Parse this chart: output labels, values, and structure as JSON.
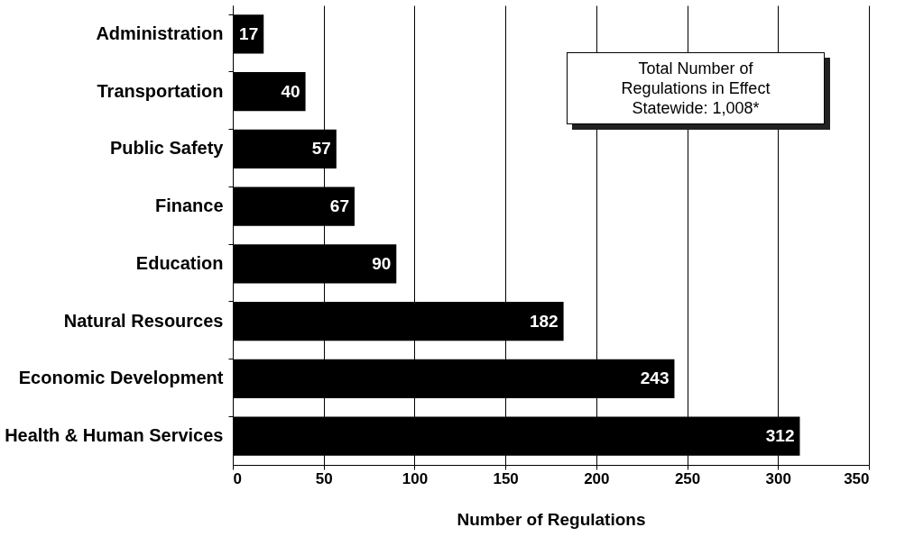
{
  "chart_data": {
    "type": "bar",
    "orientation": "horizontal",
    "xlabel": "Number of Regulations",
    "categories": [
      "Administration",
      "Transportation",
      "Public Safety",
      "Finance",
      "Education",
      "Natural Resources",
      "Economic Development",
      "Health & Human Services"
    ],
    "values": [
      17,
      40,
      57,
      67,
      90,
      182,
      243,
      312
    ],
    "color": "#000000",
    "xlim": [
      0,
      350
    ],
    "xticks": [
      0,
      50,
      100,
      150,
      200,
      250,
      300,
      350
    ],
    "grid": "x",
    "data_labels": true,
    "annotations": [
      "Total Number of Regulations in Effect Statewide: 1,008*"
    ]
  }
}
